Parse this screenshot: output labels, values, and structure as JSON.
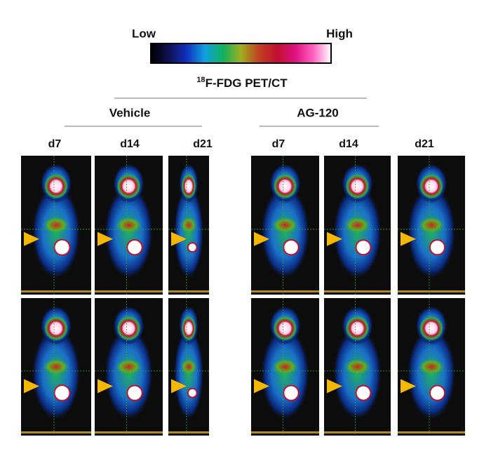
{
  "colorbar": {
    "low": "Low",
    "high": "High"
  },
  "title": {
    "superscript": "18",
    "text": "F-FDG PET/CT"
  },
  "groups": [
    {
      "name": "Vehicle",
      "columns": [
        "d7",
        "d14",
        "d21"
      ]
    },
    {
      "name": "AG-120",
      "columns": [
        "d7",
        "d14",
        "d21"
      ]
    }
  ]
}
